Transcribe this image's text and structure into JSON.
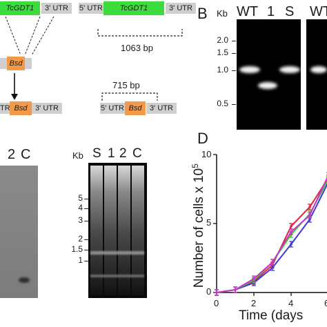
{
  "panelA": {
    "gene_label": "TcGDT1",
    "utr3": "3' UTR",
    "utr5": "5' UTR",
    "bsd": "Bsd",
    "wt_length": "1063 bp",
    "ko_length": "715 bp",
    "partial_utr3": "TR",
    "colors": {
      "gene": "#3ddc3d",
      "bsd": "#f29a4a",
      "utr": "#cfcfcf"
    }
  },
  "panelB": {
    "letter": "B",
    "kb_label": "Kb",
    "lanes": [
      "WT",
      "1",
      "S",
      "WT"
    ],
    "ladder": [
      "2.0",
      "1.5",
      "1.0",
      "0.5"
    ]
  },
  "panelC": {
    "lanes": [
      "2",
      "C"
    ]
  },
  "gel2": {
    "kb_label": "Kb",
    "lanes": [
      "S",
      "1",
      "2",
      "C"
    ],
    "ladder": [
      "5",
      "4",
      "3",
      "2",
      "1.5",
      "1"
    ]
  },
  "panelD": {
    "letter": "D",
    "ylabel": "Number of cells x 10",
    "ylabel_exp": "5",
    "xlabel": "Time (days",
    "yticks": [
      "0",
      "5",
      "10"
    ],
    "xticks": [
      "0",
      "2",
      "4",
      "6"
    ]
  },
  "chart_data": {
    "type": "line",
    "xlabel": "Time (days",
    "ylabel": "Number of cells x 10^5",
    "xlim": [
      0,
      6
    ],
    "ylim": [
      0,
      10
    ],
    "series": [
      {
        "color": "#e0263a",
        "x": [
          0,
          1,
          2,
          3,
          4,
          5,
          6
        ],
        "y": [
          0,
          0.2,
          0.8,
          2.0,
          4.8,
          6.2,
          8.3
        ]
      },
      {
        "color": "#3a3ad8",
        "x": [
          0,
          1,
          2,
          3,
          4,
          5,
          6
        ],
        "y": [
          0,
          0.2,
          0.7,
          1.8,
          3.5,
          5.3,
          8.0
        ]
      },
      {
        "color": "#33cc33",
        "x": [
          0,
          1,
          2,
          3,
          4,
          5,
          6
        ],
        "y": [
          0,
          0.2,
          0.9,
          2.2,
          4.2,
          5.7,
          8.2
        ]
      },
      {
        "color": "#cc33cc",
        "x": [
          0,
          1,
          2,
          3,
          4,
          5,
          6
        ],
        "y": [
          0,
          0.2,
          1.0,
          2.2,
          4.4,
          5.6,
          8.5
        ]
      }
    ]
  }
}
